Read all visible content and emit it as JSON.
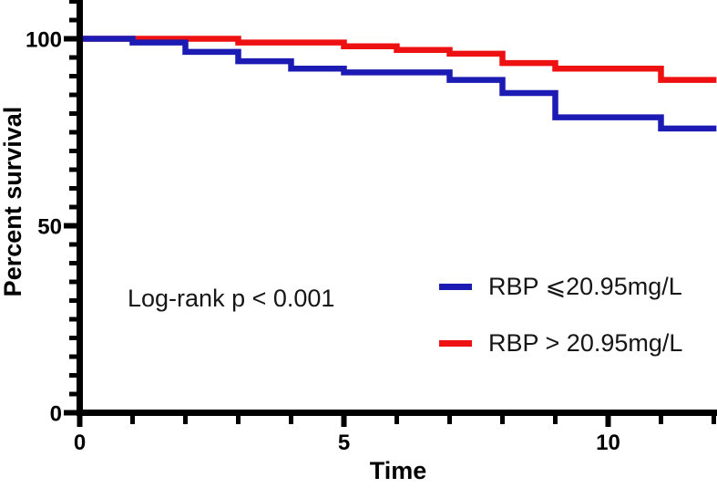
{
  "chart_data": {
    "type": "line",
    "subtype": "kaplan-meier-step",
    "title": "",
    "xlabel": "Time",
    "ylabel": "Percent survival",
    "xlim": [
      0,
      12.05
    ],
    "ylim": [
      0,
      110
    ],
    "grid": false,
    "legend_position": "inside-right-middle",
    "annotation": "Log-rank p < 0.001",
    "x_major_ticks": [
      0,
      5,
      10
    ],
    "x_tick_labels": [
      "0",
      "5",
      "10"
    ],
    "x_minor_ticks": [
      1,
      2,
      3,
      4,
      6,
      7,
      8,
      9,
      11,
      12
    ],
    "y_major_ticks": [
      0,
      50,
      100
    ],
    "y_tick_labels": [
      "0",
      "50",
      "100"
    ],
    "y_minor_ticks": [
      5,
      10,
      15,
      20,
      25,
      30,
      35,
      40,
      45,
      55,
      60,
      65,
      70,
      75,
      80,
      85,
      90,
      95,
      105,
      110
    ],
    "axis_color": "#000000",
    "series": [
      {
        "name": "RBP ⩽20.95mg/L",
        "color": "#1c1cb4",
        "points": [
          [
            0,
            100
          ],
          [
            1,
            99
          ],
          [
            2,
            96.5
          ],
          [
            3,
            94
          ],
          [
            4,
            92
          ],
          [
            5,
            91
          ],
          [
            7,
            89
          ],
          [
            8,
            85.5
          ],
          [
            9,
            79
          ],
          [
            11,
            76
          ],
          [
            12.05,
            76
          ]
        ]
      },
      {
        "name": "RBP > 20.95mg/L",
        "color": "#ee1111",
        "points": [
          [
            0,
            100
          ],
          [
            3,
            99
          ],
          [
            5,
            98
          ],
          [
            6,
            97
          ],
          [
            7,
            96
          ],
          [
            8,
            93.5
          ],
          [
            9,
            92
          ],
          [
            11,
            89
          ],
          [
            12.05,
            89
          ]
        ]
      }
    ]
  }
}
